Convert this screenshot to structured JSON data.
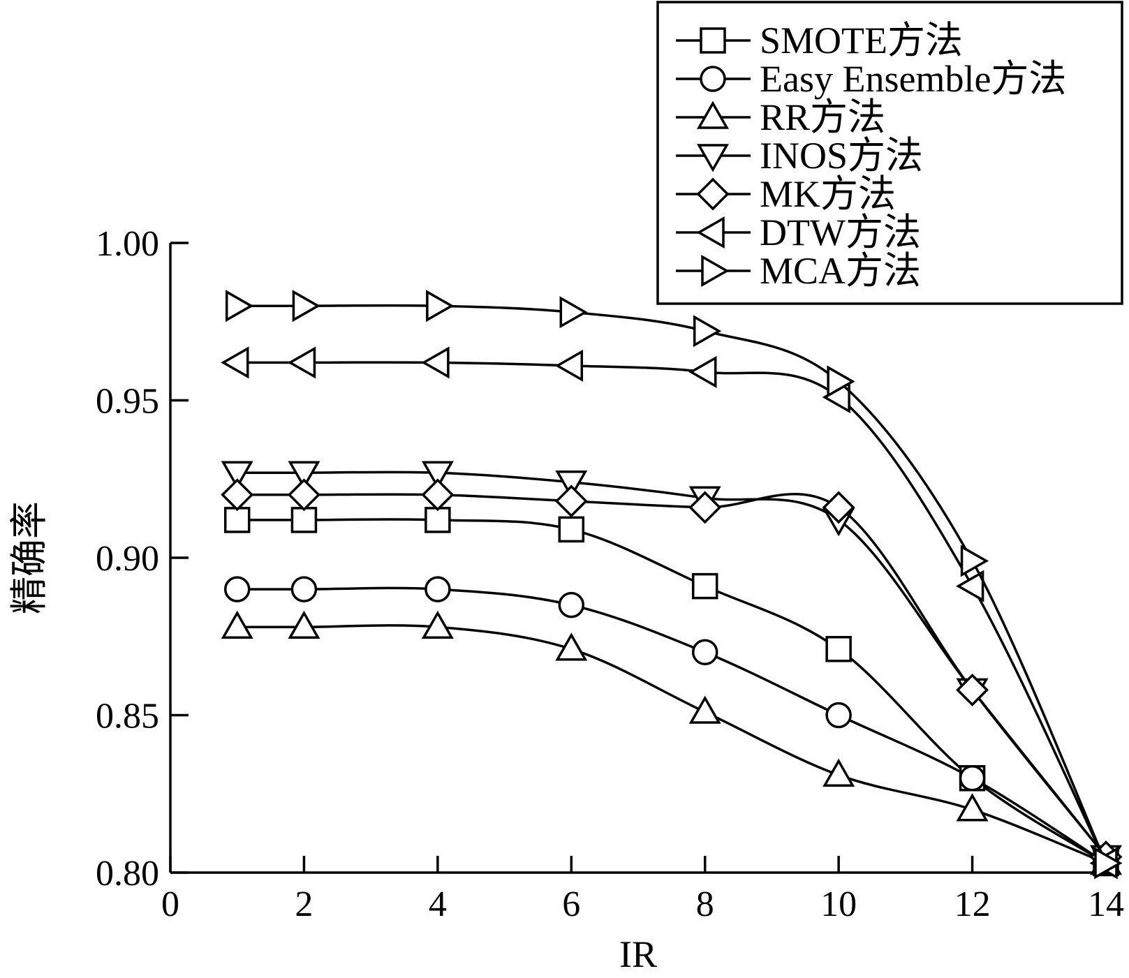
{
  "chart_data": {
    "type": "line",
    "xlabel": "IR",
    "ylabel": "精确率",
    "xlim": [
      0,
      14
    ],
    "ylim": [
      0.8,
      1.0
    ],
    "xticks": [
      "0",
      "2",
      "4",
      "6",
      "8",
      "10",
      "12",
      "14"
    ],
    "yticks": [
      "0.80",
      "0.85",
      "0.90",
      "0.95",
      "1.00"
    ],
    "x": [
      1,
      2,
      4,
      6,
      8,
      10,
      12,
      14
    ],
    "grid": false,
    "legend_position": "top-right",
    "series": [
      {
        "name": "SMOTE方法",
        "marker": "square",
        "values": [
          0.912,
          0.912,
          0.912,
          0.909,
          0.891,
          0.871,
          0.83,
          0.803
        ]
      },
      {
        "name": "Easy Ensemble方法",
        "marker": "circle",
        "values": [
          0.89,
          0.89,
          0.89,
          0.885,
          0.87,
          0.85,
          0.83,
          0.803
        ]
      },
      {
        "name": "RR方法",
        "marker": "triangle-up",
        "values": [
          0.878,
          0.878,
          0.878,
          0.871,
          0.851,
          0.831,
          0.82,
          0.803
        ]
      },
      {
        "name": "INOS方法",
        "marker": "triangle-down",
        "values": [
          0.927,
          0.927,
          0.927,
          0.924,
          0.919,
          0.912,
          0.858,
          0.805
        ]
      },
      {
        "name": "MK方法",
        "marker": "diamond",
        "values": [
          0.92,
          0.92,
          0.92,
          0.918,
          0.916,
          0.916,
          0.858,
          0.805
        ]
      },
      {
        "name": "DTW方法",
        "marker": "triangle-left",
        "values": [
          0.962,
          0.962,
          0.962,
          0.961,
          0.959,
          0.951,
          0.891,
          0.803
        ]
      },
      {
        "name": "MCA方法",
        "marker": "triangle-right",
        "values": [
          0.98,
          0.98,
          0.98,
          0.978,
          0.972,
          0.956,
          0.899,
          0.803
        ]
      }
    ]
  }
}
